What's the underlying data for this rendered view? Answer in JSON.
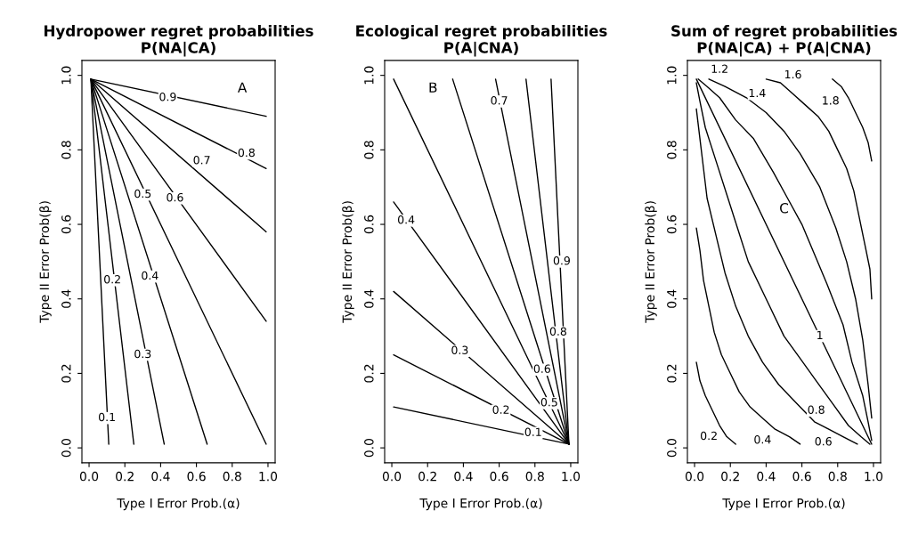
{
  "chart_data": [
    {
      "type": "line",
      "title": "Hydropower regret probabilities\nP(NA|CA)",
      "xlabel": "Type I Error Prob.(α)",
      "ylabel": "Type II Error Prob(β)",
      "xlim": [
        -0.04,
        1.04
      ],
      "ylim": [
        -0.04,
        1.04
      ],
      "xticks": [
        {
          "value": 0,
          "label": "0.0"
        },
        {
          "value": 0.2,
          "label": "0.2"
        },
        {
          "value": 0.4,
          "label": "0.4"
        },
        {
          "value": 0.6,
          "label": "0.6"
        },
        {
          "value": 0.8,
          "label": "0.8"
        },
        {
          "value": 1,
          "label": "1.0"
        }
      ],
      "yticks": [
        {
          "value": 0,
          "label": "0.0"
        },
        {
          "value": 0.2,
          "label": "0.2"
        },
        {
          "value": 0.4,
          "label": "0.4"
        },
        {
          "value": 0.6,
          "label": "0.6"
        },
        {
          "value": 0.8,
          "label": "0.8"
        },
        {
          "value": 1,
          "label": "1.0"
        }
      ],
      "grid": false,
      "marker": "none",
      "line_style": "solid",
      "series": [
        {
          "color": "#000000",
          "x": [
            0.01,
            0.11
          ],
          "values": [
            0.99,
            0.01
          ]
        },
        {
          "color": "#000000",
          "x": [
            0.01,
            0.25
          ],
          "values": [
            0.99,
            0.01
          ]
        },
        {
          "color": "#000000",
          "x": [
            0.01,
            0.42
          ],
          "values": [
            0.99,
            0.01
          ]
        },
        {
          "color": "#000000",
          "x": [
            0.01,
            0.66
          ],
          "values": [
            0.99,
            0.01
          ]
        },
        {
          "color": "#000000",
          "x": [
            0.01,
            0.99
          ],
          "values": [
            0.99,
            0.01
          ]
        },
        {
          "color": "#000000",
          "x": [
            0.01,
            0.99
          ],
          "values": [
            0.99,
            0.34
          ]
        },
        {
          "color": "#000000",
          "x": [
            0.01,
            0.99
          ],
          "values": [
            0.99,
            0.58
          ]
        },
        {
          "color": "#000000",
          "x": [
            0.01,
            0.99
          ],
          "values": [
            0.99,
            0.75
          ]
        },
        {
          "color": "#000000",
          "x": [
            0.01,
            0.99
          ],
          "values": [
            0.99,
            0.89
          ]
        }
      ],
      "annotations": [
        "A",
        {
          "text": "0.1",
          "x": 0.1,
          "y": 0.08
        },
        {
          "text": "0.2",
          "x": 0.13,
          "y": 0.45
        },
        {
          "text": "0.3",
          "x": 0.3,
          "y": 0.25
        },
        {
          "text": "0.4",
          "x": 0.34,
          "y": 0.46
        },
        {
          "text": "0.5",
          "x": 0.3,
          "y": 0.68
        },
        {
          "text": "0.6",
          "x": 0.48,
          "y": 0.67
        },
        {
          "text": "0.7",
          "x": 0.63,
          "y": 0.77
        },
        {
          "text": "0.8",
          "x": 0.88,
          "y": 0.79
        },
        {
          "text": "0.9",
          "x": 0.44,
          "y": 0.94
        }
      ]
    },
    {
      "type": "line",
      "title": "Ecological regret probabilities\nP(A|CNA)",
      "xlabel": "Type I Error Prob.(α)",
      "ylabel": "Type II Error Prob(β)",
      "xlim": [
        -0.04,
        1.04
      ],
      "ylim": [
        -0.04,
        1.04
      ],
      "xticks": [
        {
          "value": 0,
          "label": "0.0"
        },
        {
          "value": 0.2,
          "label": "0.2"
        },
        {
          "value": 0.4,
          "label": "0.4"
        },
        {
          "value": 0.6,
          "label": "0.6"
        },
        {
          "value": 0.8,
          "label": "0.8"
        },
        {
          "value": 1,
          "label": "1.0"
        }
      ],
      "yticks": [
        {
          "value": 0,
          "label": "0.0"
        },
        {
          "value": 0.2,
          "label": "0.2"
        },
        {
          "value": 0.4,
          "label": "0.4"
        },
        {
          "value": 0.6,
          "label": "0.6"
        },
        {
          "value": 0.8,
          "label": "0.8"
        },
        {
          "value": 1,
          "label": "1.0"
        }
      ],
      "grid": false,
      "marker": "none",
      "line_style": "solid",
      "series": [
        {
          "color": "#000000",
          "x": [
            0.01,
            0.99
          ],
          "values": [
            0.11,
            0.01
          ]
        },
        {
          "color": "#000000",
          "x": [
            0.01,
            0.99
          ],
          "values": [
            0.25,
            0.01
          ]
        },
        {
          "color": "#000000",
          "x": [
            0.01,
            0.99
          ],
          "values": [
            0.42,
            0.01
          ]
        },
        {
          "color": "#000000",
          "x": [
            0.01,
            0.99
          ],
          "values": [
            0.66,
            0.01
          ]
        },
        {
          "color": "#000000",
          "x": [
            0.01,
            0.99
          ],
          "values": [
            0.99,
            0.01
          ]
        },
        {
          "color": "#000000",
          "x": [
            0.34,
            0.99
          ],
          "values": [
            0.99,
            0.01
          ]
        },
        {
          "color": "#000000",
          "x": [
            0.58,
            0.99
          ],
          "values": [
            0.99,
            0.01
          ]
        },
        {
          "color": "#000000",
          "x": [
            0.75,
            0.99
          ],
          "values": [
            0.99,
            0.01
          ]
        },
        {
          "color": "#000000",
          "x": [
            0.89,
            0.99
          ],
          "values": [
            0.99,
            0.01
          ]
        }
      ],
      "annotations": [
        "B",
        {
          "text": "0.1",
          "x": 0.79,
          "y": 0.04
        },
        {
          "text": "0.2",
          "x": 0.61,
          "y": 0.1
        },
        {
          "text": "0.3",
          "x": 0.38,
          "y": 0.26
        },
        {
          "text": "0.4",
          "x": 0.08,
          "y": 0.61
        },
        {
          "text": "0.5",
          "x": 0.88,
          "y": 0.12
        },
        {
          "text": "0.6",
          "x": 0.84,
          "y": 0.21
        },
        {
          "text": "0.7",
          "x": 0.6,
          "y": 0.93
        },
        {
          "text": "0.8",
          "x": 0.93,
          "y": 0.31
        },
        {
          "text": "0.9",
          "x": 0.95,
          "y": 0.5
        }
      ]
    },
    {
      "type": "line",
      "title": "Sum of regret probabilities\nP(NA|CA) + P(A|CNA)",
      "xlabel": "Type I Error Prob.(α)",
      "ylabel": "Type II Error Prob(β)",
      "xlim": [
        -0.04,
        1.04
      ],
      "ylim": [
        -0.04,
        1.04
      ],
      "xticks": [
        {
          "value": 0,
          "label": "0.0"
        },
        {
          "value": 0.2,
          "label": "0.2"
        },
        {
          "value": 0.4,
          "label": "0.4"
        },
        {
          "value": 0.6,
          "label": "0.6"
        },
        {
          "value": 0.8,
          "label": "0.8"
        },
        {
          "value": 1,
          "label": "1.0"
        }
      ],
      "yticks": [
        {
          "value": 0,
          "label": "0.0"
        },
        {
          "value": 0.2,
          "label": "0.2"
        },
        {
          "value": 0.4,
          "label": "0.4"
        },
        {
          "value": 0.6,
          "label": "0.6"
        },
        {
          "value": 0.8,
          "label": "0.8"
        },
        {
          "value": 1,
          "label": "1.0"
        }
      ],
      "grid": false,
      "marker": "none",
      "line_style": "solid",
      "series": [
        {
          "color": "#000000",
          "x": [
            0.01,
            0.03,
            0.06,
            0.1,
            0.14,
            0.18,
            0.23
          ],
          "values": [
            0.23,
            0.18,
            0.14,
            0.1,
            0.06,
            0.03,
            0.01
          ]
        },
        {
          "color": "#000000",
          "x": [
            0.01,
            0.03,
            0.05,
            0.08,
            0.11,
            0.15,
            0.2,
            0.25,
            0.31,
            0.38,
            0.45,
            0.53,
            0.59
          ],
          "values": [
            0.59,
            0.53,
            0.45,
            0.38,
            0.31,
            0.25,
            0.2,
            0.15,
            0.11,
            0.08,
            0.05,
            0.03,
            0.01
          ]
        },
        {
          "color": "#000000",
          "x": [
            0.01,
            0.03,
            0.05,
            0.07,
            0.12,
            0.17,
            0.23,
            0.3,
            0.38,
            0.47,
            0.57,
            0.67,
            0.75,
            0.83,
            0.91
          ],
          "values": [
            0.91,
            0.83,
            0.75,
            0.67,
            0.57,
            0.47,
            0.38,
            0.3,
            0.23,
            0.17,
            0.12,
            0.07,
            0.05,
            0.03,
            0.01
          ]
        },
        {
          "color": "#000000",
          "x": [
            0.01,
            0.03,
            0.06,
            0.12,
            0.18,
            0.24,
            0.3,
            0.4,
            0.5,
            0.59,
            0.68,
            0.77,
            0.86,
            0.93,
            0.98
          ],
          "values": [
            0.98,
            0.93,
            0.86,
            0.77,
            0.68,
            0.59,
            0.5,
            0.4,
            0.3,
            0.24,
            0.18,
            0.12,
            0.06,
            0.03,
            0.01
          ]
        },
        {
          "color": "#000000",
          "x": [
            0.01,
            0.99
          ],
          "values": [
            0.99,
            0.01
          ]
        },
        {
          "color": "#000000",
          "x": [
            0.02,
            0.07,
            0.14,
            0.23,
            0.33,
            0.44,
            0.52,
            0.6,
            0.67,
            0.74,
            0.83,
            0.88,
            0.94,
            0.97,
            0.99
          ],
          "values": [
            0.99,
            0.97,
            0.94,
            0.88,
            0.83,
            0.74,
            0.67,
            0.6,
            0.52,
            0.44,
            0.33,
            0.23,
            0.14,
            0.07,
            0.02
          ]
        },
        {
          "color": "#000000",
          "x": [
            0.08,
            0.17,
            0.29,
            0.4,
            0.5,
            0.59,
            0.7,
            0.79,
            0.85,
            0.9,
            0.94,
            0.97,
            0.99
          ],
          "values": [
            0.99,
            0.97,
            0.94,
            0.9,
            0.85,
            0.79,
            0.7,
            0.59,
            0.5,
            0.4,
            0.29,
            0.17,
            0.08
          ]
        },
        {
          "color": "#000000",
          "x": [
            0.4,
            0.48,
            0.55,
            0.62,
            0.69,
            0.75,
            0.8,
            0.85,
            0.89,
            0.92,
            0.95,
            0.98,
            0.99
          ],
          "values": [
            0.99,
            0.98,
            0.95,
            0.92,
            0.89,
            0.85,
            0.8,
            0.75,
            0.69,
            0.62,
            0.55,
            0.48,
            0.4
          ]
        },
        {
          "color": "#000000",
          "x": [
            0.77,
            0.82,
            0.86,
            0.9,
            0.94,
            0.97,
            0.99
          ],
          "values": [
            0.99,
            0.97,
            0.94,
            0.9,
            0.86,
            0.82,
            0.77
          ]
        }
      ],
      "annotations": [
        "C",
        {
          "text": "0.2",
          "x": 0.08,
          "y": 0.03
        },
        {
          "text": "0.4",
          "x": 0.38,
          "y": 0.02
        },
        {
          "text": "0.6",
          "x": 0.72,
          "y": 0.015
        },
        {
          "text": "0.8",
          "x": 0.68,
          "y": 0.1
        },
        {
          "text": "1",
          "x": 0.7,
          "y": 0.3
        },
        {
          "text": "1.2",
          "x": 0.14,
          "y": 1.015
        },
        {
          "text": "1.4",
          "x": 0.35,
          "y": 0.95
        },
        {
          "text": "1.6",
          "x": 0.55,
          "y": 1.0
        },
        {
          "text": "1.8",
          "x": 0.76,
          "y": 0.93
        }
      ]
    }
  ]
}
